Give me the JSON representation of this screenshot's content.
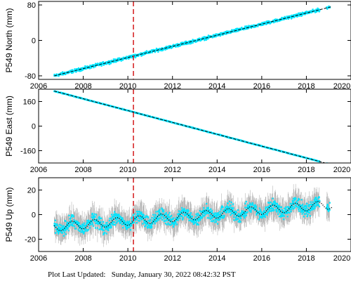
{
  "footer": {
    "label": "Plot Last Updated:",
    "timestamp": "Sunday, January 30, 2022 08:42:32 PST"
  },
  "colors": {
    "data": "#00e5ff",
    "error_bars": "#a8a8a8",
    "model": "#000000",
    "event": "#d62728"
  },
  "chart_data": [
    {
      "type": "scatter",
      "ylabel": "P549 North (mm)",
      "xlim": [
        2006,
        2020
      ],
      "ylim": [
        -88,
        88
      ],
      "x_ticks": [
        2006,
        2008,
        2010,
        2012,
        2014,
        2016,
        2018,
        2020
      ],
      "y_ticks": [
        -80,
        0,
        80
      ],
      "series_start": 2006.7,
      "series_end": 2019.05,
      "trend_start_value": -80,
      "trend_end_value": 75,
      "seasonal_amplitude": 0,
      "scatter_spread": 6,
      "event_x": 2010.25,
      "grid": false,
      "legend": "none"
    },
    {
      "type": "scatter",
      "ylabel": "P549 East (mm)",
      "xlim": [
        2006,
        2020
      ],
      "ylim": [
        -240,
        240
      ],
      "x_ticks": [
        2006,
        2008,
        2010,
        2012,
        2014,
        2016,
        2018,
        2020
      ],
      "y_ticks": [
        -160,
        0,
        160
      ],
      "series_start": 2006.7,
      "series_end": 2019.05,
      "trend_start_value": 228,
      "trend_end_value": -248,
      "seasonal_amplitude": 0,
      "scatter_spread": 4,
      "event_x": 2010.25,
      "grid": false,
      "legend": "none"
    },
    {
      "type": "scatter",
      "ylabel": "P549 Up (mm)",
      "xlim": [
        2006,
        2020
      ],
      "ylim": [
        -30,
        30
      ],
      "x_ticks": [
        2006,
        2008,
        2010,
        2012,
        2014,
        2016,
        2018,
        2020
      ],
      "y_ticks": [
        -20,
        0,
        20
      ],
      "series_start": 2006.7,
      "series_end": 2019.05,
      "trend_start_value": -10,
      "trend_end_value": 8,
      "seasonal_amplitude": 3.5,
      "scatter_spread": 9,
      "event_x": 2010.25,
      "grid": false,
      "legend": "none"
    }
  ]
}
